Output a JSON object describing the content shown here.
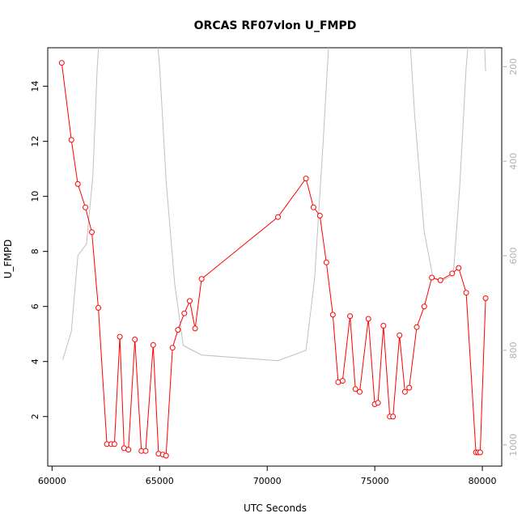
{
  "chart_data": {
    "type": "line",
    "title": "ORCAS RF07vlon U_FMPD",
    "xlabel": "UTC Seconds",
    "ylabel": "U_FMPD",
    "xlim": [
      59800,
      80900
    ],
    "ylim": [
      0.2,
      15.4
    ],
    "y2lim": [
      1045,
      160
    ],
    "y2_reversed": true,
    "grid": false,
    "x_ticks": [
      60000,
      65000,
      70000,
      75000,
      80000
    ],
    "y_ticks": [
      2,
      4,
      6,
      8,
      10,
      12,
      14
    ],
    "y2_ticks": [
      200,
      400,
      600,
      800,
      1000
    ],
    "x_tick_labels": [
      "60000",
      "65000",
      "70000",
      "75000",
      "80000"
    ],
    "y_tick_labels": [
      "2",
      "4",
      "6",
      "8",
      "10",
      "12",
      "14"
    ],
    "y2_tick_labels": [
      "200",
      "400",
      "600",
      "800",
      "1000"
    ],
    "series": [
      {
        "color": "#ff0000",
        "marker": "open-circle",
        "axis": "left",
        "points": [
          [
            60450,
            14.85
          ],
          [
            60900,
            12.05
          ],
          [
            61200,
            10.45
          ],
          [
            61550,
            9.6
          ],
          [
            61850,
            8.7
          ],
          [
            62150,
            5.95
          ],
          [
            62550,
            1.0
          ],
          [
            62750,
            1.0
          ],
          [
            62900,
            1.0
          ],
          [
            63150,
            4.9
          ],
          [
            63350,
            0.85
          ],
          [
            63550,
            0.8
          ],
          [
            63850,
            4.8
          ],
          [
            64150,
            0.75
          ],
          [
            64350,
            0.75
          ],
          [
            64700,
            4.6
          ],
          [
            64950,
            0.65
          ],
          [
            65150,
            0.62
          ],
          [
            65300,
            0.58
          ],
          [
            65600,
            4.5
          ],
          [
            65850,
            5.15
          ],
          [
            66150,
            5.75
          ],
          [
            66400,
            6.2
          ],
          [
            66650,
            5.2
          ],
          [
            66950,
            7.0
          ],
          [
            70500,
            9.25
          ],
          [
            71800,
            10.65
          ],
          [
            72150,
            9.6
          ],
          [
            72450,
            9.3
          ],
          [
            72750,
            7.6
          ],
          [
            73050,
            5.7
          ],
          [
            73300,
            3.25
          ],
          [
            73500,
            3.3
          ],
          [
            73850,
            5.65
          ],
          [
            74100,
            3.0
          ],
          [
            74300,
            2.9
          ],
          [
            74700,
            5.55
          ],
          [
            75000,
            2.45
          ],
          [
            75150,
            2.5
          ],
          [
            75400,
            5.3
          ],
          [
            75700,
            2.0
          ],
          [
            75850,
            2.0
          ],
          [
            76150,
            4.95
          ],
          [
            76400,
            2.9
          ],
          [
            76600,
            3.05
          ],
          [
            76950,
            5.25
          ],
          [
            77300,
            6.0
          ],
          [
            77650,
            7.05
          ],
          [
            78050,
            6.95
          ],
          [
            78600,
            7.2
          ],
          [
            78900,
            7.4
          ],
          [
            79250,
            6.5
          ],
          [
            79700,
            0.7
          ],
          [
            79800,
            0.7
          ],
          [
            79900,
            0.7
          ],
          [
            80150,
            6.3
          ]
        ]
      },
      {
        "color": "#c0c0c0",
        "marker": "none",
        "axis": "right",
        "points": [
          [
            60500,
            820
          ],
          [
            60900,
            760
          ],
          [
            61200,
            600
          ],
          [
            61600,
            575
          ],
          [
            61900,
            430
          ],
          [
            62100,
            200
          ],
          [
            62350,
            40
          ],
          [
            64700,
            40
          ],
          [
            65000,
            200
          ],
          [
            65300,
            440
          ],
          [
            65700,
            660
          ],
          [
            66100,
            790
          ],
          [
            66950,
            810
          ],
          [
            70500,
            822
          ],
          [
            71800,
            800
          ],
          [
            72200,
            650
          ],
          [
            72600,
            360
          ],
          [
            73000,
            40
          ],
          [
            76500,
            40
          ],
          [
            76850,
            300
          ],
          [
            77300,
            550
          ],
          [
            77700,
            645
          ],
          [
            78050,
            655
          ],
          [
            78650,
            640
          ],
          [
            78950,
            450
          ],
          [
            79250,
            200
          ],
          [
            79550,
            40
          ],
          [
            80000,
            40
          ],
          [
            80150,
            210
          ]
        ]
      }
    ]
  }
}
